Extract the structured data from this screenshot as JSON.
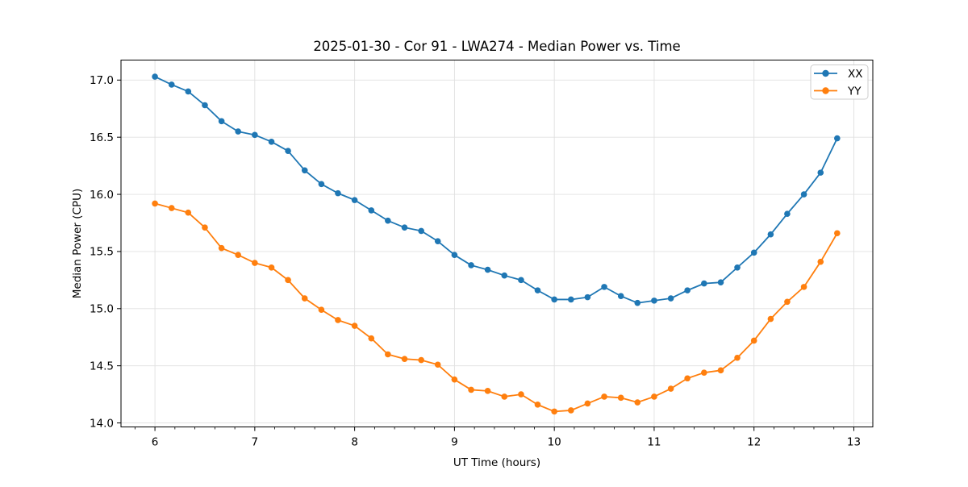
{
  "figure": {
    "title": "2025-01-30 - Cor 91 - LWA274 - Median Power vs. Time",
    "xlabel": "UT Time (hours)",
    "ylabel": "Median Power (CPU)"
  },
  "legend": {
    "position": "upper right",
    "items": [
      {
        "label": "XX",
        "color": "#1f77b4"
      },
      {
        "label": "YY",
        "color": "#ff7f0e"
      }
    ]
  },
  "chart_data": {
    "type": "line",
    "title": "2025-01-30 - Cor 91 - LWA274 - Median Power vs. Time",
    "xlabel": "UT Time (hours)",
    "ylabel": "Median Power (CPU)",
    "xlim": [
      5.66,
      13.19
    ],
    "ylim": [
      13.965,
      17.175
    ],
    "x_ticks": [
      6,
      7,
      8,
      9,
      10,
      11,
      12,
      13
    ],
    "y_ticks": [
      14.0,
      14.5,
      15.0,
      15.5,
      16.0,
      16.5,
      17.0
    ],
    "x_minor_tick_step": 0.2,
    "grid": true,
    "grid_color": "#e0e0e0",
    "legend_position": "upper right",
    "marker": "o",
    "x": [
      6.0,
      6.167,
      6.333,
      6.5,
      6.667,
      6.833,
      7.0,
      7.167,
      7.333,
      7.5,
      7.667,
      7.833,
      8.0,
      8.167,
      8.333,
      8.5,
      8.667,
      8.833,
      9.0,
      9.167,
      9.333,
      9.5,
      9.667,
      9.833,
      10.0,
      10.167,
      10.333,
      10.5,
      10.667,
      10.833,
      11.0,
      11.167,
      11.333,
      11.5,
      11.667,
      11.833,
      12.0,
      12.167,
      12.333,
      12.5,
      12.667,
      12.833
    ],
    "series": [
      {
        "name": "XX",
        "color": "#1f77b4",
        "values": [
          17.03,
          16.96,
          16.9,
          16.78,
          16.64,
          16.55,
          16.52,
          16.46,
          16.38,
          16.21,
          16.09,
          16.01,
          15.95,
          15.86,
          15.77,
          15.71,
          15.68,
          15.59,
          15.47,
          15.38,
          15.34,
          15.29,
          15.25,
          15.16,
          15.08,
          15.08,
          15.1,
          15.19,
          15.11,
          15.05,
          15.07,
          15.09,
          15.16,
          15.22,
          15.23,
          15.36,
          15.49,
          15.65,
          15.83,
          16.0,
          16.19,
          16.49
        ]
      },
      {
        "name": "YY",
        "color": "#ff7f0e",
        "values": [
          15.92,
          15.88,
          15.84,
          15.71,
          15.53,
          15.47,
          15.4,
          15.36,
          15.25,
          15.09,
          14.99,
          14.9,
          14.85,
          14.74,
          14.6,
          14.56,
          14.55,
          14.51,
          14.38,
          14.29,
          14.28,
          14.23,
          14.25,
          14.16,
          14.1,
          14.11,
          14.17,
          14.23,
          14.22,
          14.18,
          14.23,
          14.3,
          14.39,
          14.44,
          14.46,
          14.57,
          14.72,
          14.91,
          15.06,
          15.19,
          15.41,
          15.66
        ]
      }
    ]
  }
}
